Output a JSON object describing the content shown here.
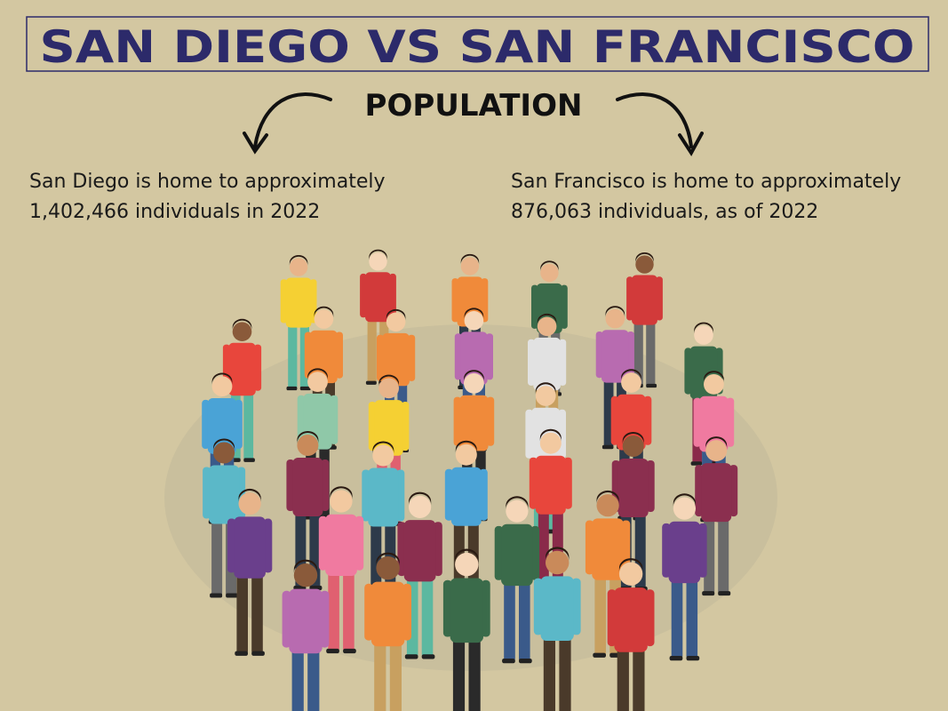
{
  "header": {
    "title": "SAN DIEGO VS SAN FRANCISCO",
    "subtitle": "POPULATION"
  },
  "left": {
    "lines": [
      "San Diego is home to approximately",
      "1,402,466 individuals in 2022"
    ]
  },
  "right": {
    "lines": [
      "San Francisco is home to approximately",
      "876,063 individuals, as of 2022"
    ]
  }
}
